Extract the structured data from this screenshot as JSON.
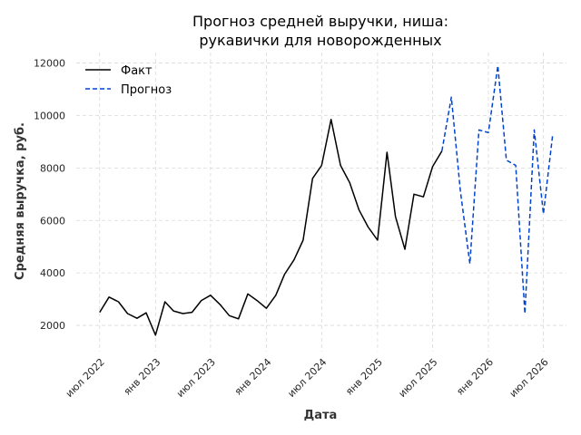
{
  "chart_data": {
    "type": "line",
    "title_lines": [
      "Прогноз средней выручки, ниша:",
      "рукавички для новорожденных"
    ],
    "xlabel": "Дата",
    "ylabel": "Средняя выручка, руб.",
    "xlim": [
      "2022-04-15",
      "2026-09-15"
    ],
    "ylim": [
      1000,
      12400
    ],
    "y_ticks": [
      2000,
      4000,
      6000,
      8000,
      10000,
      12000
    ],
    "x_ticks": [
      {
        "date": "2022-07-01",
        "label": "июл 2022"
      },
      {
        "date": "2023-01-01",
        "label": "янв 2023"
      },
      {
        "date": "2023-07-01",
        "label": "июл 2023"
      },
      {
        "date": "2024-01-01",
        "label": "янв 2024"
      },
      {
        "date": "2024-07-01",
        "label": "июл 2024"
      },
      {
        "date": "2025-01-01",
        "label": "янв 2025"
      },
      {
        "date": "2025-07-01",
        "label": "июл 2025"
      },
      {
        "date": "2026-01-01",
        "label": "янв 2026"
      },
      {
        "date": "2026-07-01",
        "label": "июл 2026"
      }
    ],
    "grid": true,
    "legend_position": "top-left",
    "series": [
      {
        "name": "Факт",
        "color": "#000000",
        "style": "solid",
        "points": [
          [
            "2022-07-01",
            2500
          ],
          [
            "2022-08-01",
            3080
          ],
          [
            "2022-09-01",
            2900
          ],
          [
            "2022-10-01",
            2450
          ],
          [
            "2022-11-01",
            2270
          ],
          [
            "2022-12-01",
            2480
          ],
          [
            "2023-01-01",
            1630
          ],
          [
            "2023-02-01",
            2900
          ],
          [
            "2023-03-01",
            2550
          ],
          [
            "2023-04-01",
            2450
          ],
          [
            "2023-05-01",
            2500
          ],
          [
            "2023-06-01",
            2950
          ],
          [
            "2023-07-01",
            3150
          ],
          [
            "2023-08-01",
            2800
          ],
          [
            "2023-09-01",
            2370
          ],
          [
            "2023-10-01",
            2250
          ],
          [
            "2023-11-01",
            3200
          ],
          [
            "2023-12-01",
            2950
          ],
          [
            "2024-01-01",
            2650
          ],
          [
            "2024-02-01",
            3150
          ],
          [
            "2024-03-01",
            3950
          ],
          [
            "2024-04-01",
            4500
          ],
          [
            "2024-05-01",
            5250
          ],
          [
            "2024-06-01",
            7600
          ],
          [
            "2024-07-01",
            8100
          ],
          [
            "2024-08-01",
            9850
          ],
          [
            "2024-09-01",
            8100
          ],
          [
            "2024-10-01",
            7450
          ],
          [
            "2024-11-01",
            6400
          ],
          [
            "2024-12-01",
            5750
          ],
          [
            "2025-01-01",
            5250
          ],
          [
            "2025-02-01",
            8600
          ],
          [
            "2025-03-01",
            6150
          ],
          [
            "2025-04-01",
            4900
          ],
          [
            "2025-05-01",
            7000
          ],
          [
            "2025-06-01",
            6900
          ],
          [
            "2025-07-01",
            8050
          ],
          [
            "2025-08-01",
            8650
          ]
        ]
      },
      {
        "name": "Прогноз",
        "color": "#0043ce",
        "style": "dashed",
        "points": [
          [
            "2025-08-01",
            8650
          ],
          [
            "2025-09-01",
            10700
          ],
          [
            "2025-10-01",
            7100
          ],
          [
            "2025-11-01",
            4350
          ],
          [
            "2025-12-01",
            9450
          ],
          [
            "2026-01-01",
            9350
          ],
          [
            "2026-02-01",
            11900
          ],
          [
            "2026-03-01",
            8300
          ],
          [
            "2026-04-01",
            8100
          ],
          [
            "2026-05-01",
            2450
          ],
          [
            "2026-06-01",
            9450
          ],
          [
            "2026-07-01",
            6250
          ],
          [
            "2026-08-01",
            9300
          ]
        ]
      }
    ]
  }
}
